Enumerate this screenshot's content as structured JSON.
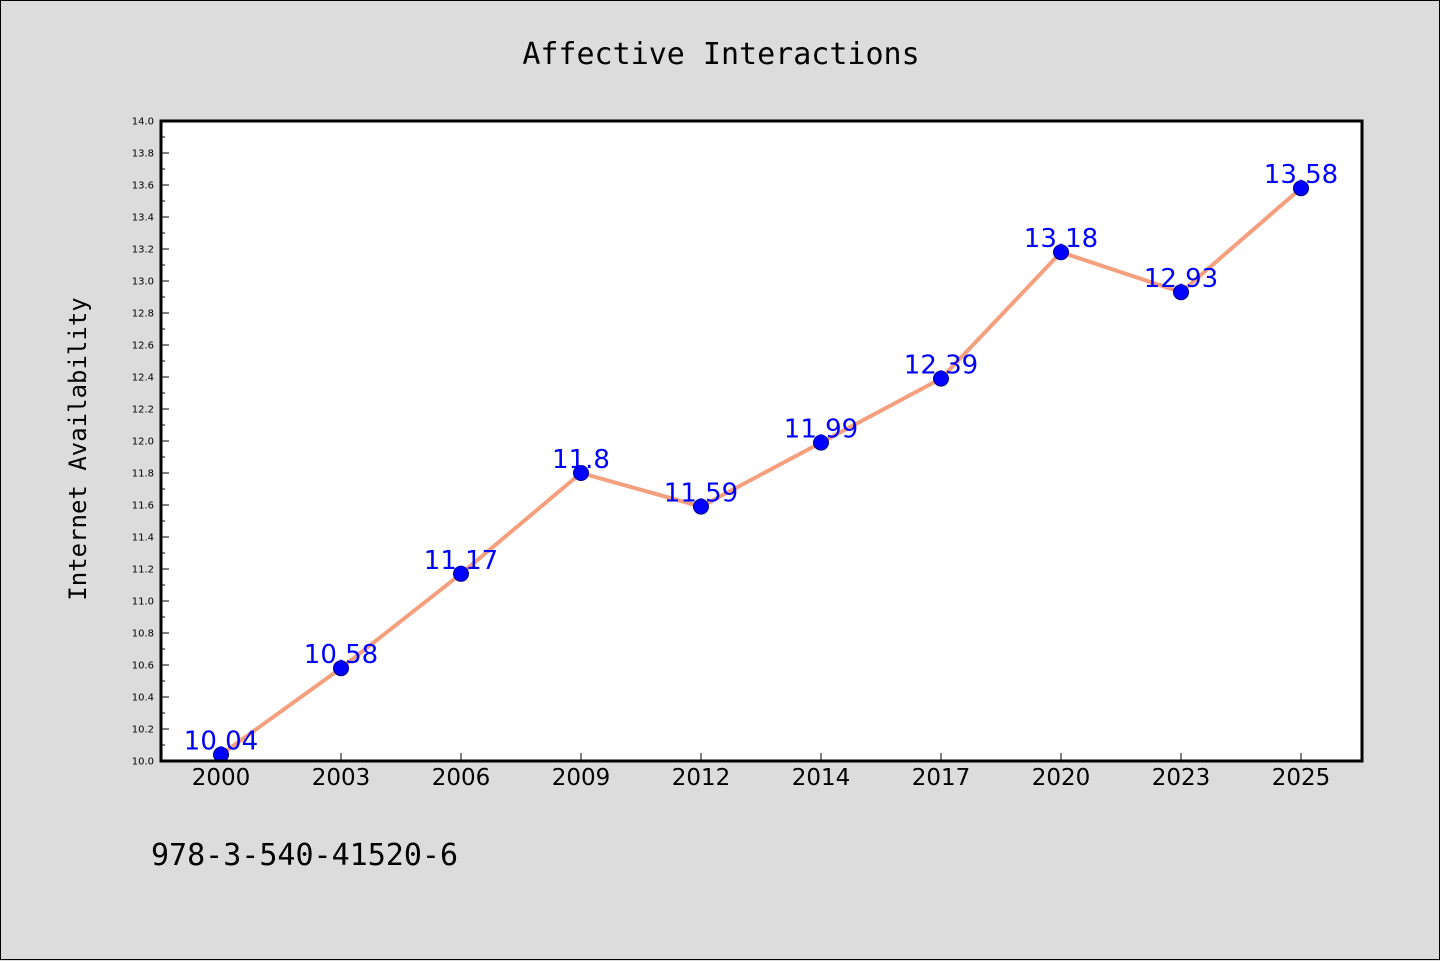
{
  "chart_data": {
    "type": "line",
    "title": "Affective Interactions",
    "xlabel": "",
    "ylabel": "Internet Availability",
    "categories": [
      "2000",
      "2003",
      "2006",
      "2009",
      "2012",
      "2014",
      "2017",
      "2020",
      "2023",
      "2025"
    ],
    "series": [
      {
        "values": [
          10.04,
          10.58,
          11.17,
          11.8,
          11.59,
          11.99,
          12.39,
          13.18,
          12.93,
          13.58
        ]
      }
    ],
    "data_labels": [
      "10.04",
      "10.58",
      "11.17",
      "11.8",
      "11.59",
      "11.99",
      "12.39",
      "13.18",
      "12.93",
      "13.58"
    ],
    "ylim": [
      10.0,
      14.0
    ],
    "yticks": [
      "10.0",
      "10.2",
      "10.4",
      "10.6",
      "10.8",
      "11.0",
      "11.2",
      "11.4",
      "11.6",
      "11.8",
      "12.0",
      "12.2",
      "12.4",
      "12.6",
      "12.8",
      "13.0",
      "13.2",
      "13.4",
      "13.6",
      "13.8",
      "14.0"
    ],
    "grid": false,
    "legend": "none",
    "colors": {
      "line": "#f4a07e",
      "marker": "#0000ff",
      "marker_edge": "#00008b",
      "data_label": "#0000ff",
      "background": "#dcdcdc",
      "plot_background": "#ffffff"
    }
  },
  "footnote": "978-3-540-41520-6"
}
